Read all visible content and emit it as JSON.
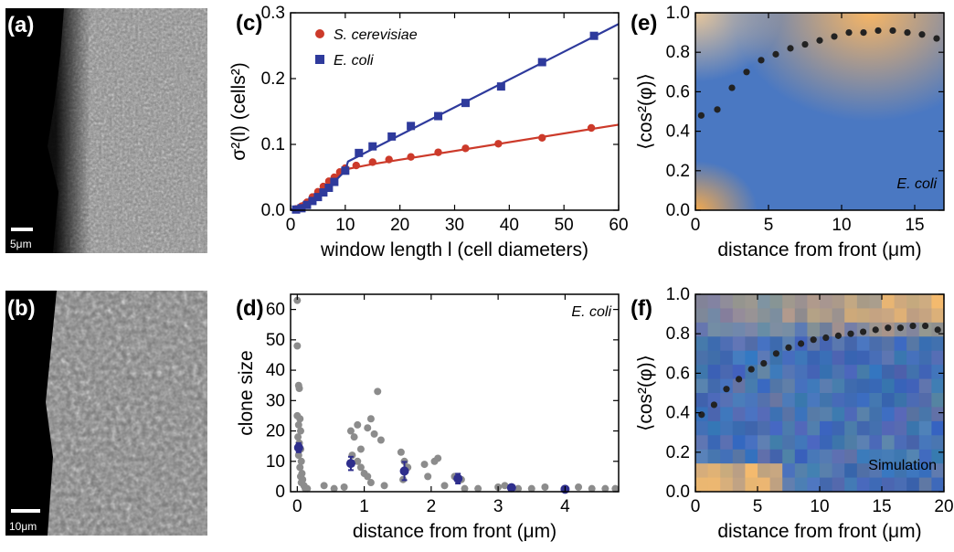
{
  "panels": {
    "a": {
      "label": "(a)",
      "scalebar": "5μm"
    },
    "b": {
      "label": "(b)",
      "scalebar": "10μm"
    },
    "c": {
      "label": "(c)"
    },
    "d": {
      "label": "(d)"
    },
    "e": {
      "label": "(e)"
    },
    "f": {
      "label": "(f)"
    }
  },
  "chart_data": [
    {
      "id": "c",
      "type": "line",
      "xlabel": "window length l (cell diameters)",
      "ylabel": "σ²(l) (cells²)",
      "xlim": [
        0,
        60
      ],
      "ylim": [
        0,
        0.3
      ],
      "xticks": [
        "0",
        "10",
        "20",
        "30",
        "40",
        "50",
        "60"
      ],
      "yticks": [
        "0.0",
        "0.1",
        "0.2",
        "0.3"
      ],
      "legend": "top-left",
      "series": [
        {
          "name": "S. cerevisiae",
          "color": "#cc3a2a",
          "marker": "circle",
          "x": [
            1,
            2,
            3,
            4,
            5,
            6,
            7,
            8,
            9,
            10,
            12,
            15,
            18,
            22,
            27,
            32,
            38,
            46,
            55
          ],
          "y": [
            0.002,
            0.006,
            0.012,
            0.02,
            0.028,
            0.036,
            0.044,
            0.05,
            0.058,
            0.064,
            0.068,
            0.073,
            0.077,
            0.081,
            0.088,
            0.094,
            0.101,
            0.11,
            0.125
          ],
          "fit": [
            [
              0,
              0
            ],
            [
              4,
              0.02
            ],
            [
              8,
              0.048
            ],
            [
              10,
              0.062
            ],
            [
              15,
              0.07
            ],
            [
              60,
              0.13
            ]
          ]
        },
        {
          "name": "E. coli",
          "color": "#2e3a9c",
          "marker": "square",
          "x": [
            1,
            2,
            3,
            4,
            5,
            6,
            7,
            8,
            10,
            12.5,
            15,
            18.5,
            22,
            27,
            32,
            38.5,
            46,
            55.5
          ],
          "y": [
            0.001,
            0.003,
            0.008,
            0.014,
            0.02,
            0.027,
            0.034,
            0.043,
            0.06,
            0.087,
            0.097,
            0.112,
            0.128,
            0.143,
            0.163,
            0.188,
            0.225,
            0.265
          ],
          "fit": [
            [
              0,
              0
            ],
            [
              5,
              0.018
            ],
            [
              10,
              0.06
            ],
            [
              10.5,
              0.074
            ],
            [
              60,
              0.283
            ]
          ]
        }
      ]
    },
    {
      "id": "d",
      "type": "scatter",
      "xlabel": "distance from front (μm)",
      "ylabel": "clone size",
      "annotation": "E. coli",
      "xlim": [
        -0.1,
        4.8
      ],
      "ylim": [
        0,
        65
      ],
      "xticks": [
        "0",
        "1",
        "2",
        "3",
        "4"
      ],
      "yticks": [
        "0",
        "10",
        "20",
        "30",
        "40",
        "50",
        "60"
      ],
      "series": [
        {
          "name": "",
          "color": "#8c8c8c",
          "points": [
            [
              0,
              63
            ],
            [
              0,
              48
            ],
            [
              0.02,
              35
            ],
            [
              0.03,
              34
            ],
            [
              0.0,
              25
            ],
            [
              0.04,
              24
            ],
            [
              0.02,
              22
            ],
            [
              0.05,
              20
            ],
            [
              0.01,
              18
            ],
            [
              0.03,
              16
            ],
            [
              0.05,
              14
            ],
            [
              0.02,
              12
            ],
            [
              0.06,
              10
            ],
            [
              0.04,
              8
            ],
            [
              0.07,
              6
            ],
            [
              0.05,
              5
            ],
            [
              0.08,
              4
            ],
            [
              0.06,
              3
            ],
            [
              0.1,
              2
            ],
            [
              0.12,
              1
            ],
            [
              0.15,
              1
            ],
            [
              0.4,
              2
            ],
            [
              0.55,
              1
            ],
            [
              0.7,
              1.5
            ],
            [
              0.8,
              20
            ],
            [
              0.85,
              18
            ],
            [
              0.9,
              22
            ],
            [
              0.95,
              14
            ],
            [
              0.82,
              12
            ],
            [
              0.9,
              10
            ],
            [
              0.95,
              8
            ],
            [
              1.0,
              6
            ],
            [
              1.05,
              21
            ],
            [
              1.1,
              24
            ],
            [
              1.15,
              19
            ],
            [
              1.2,
              33
            ],
            [
              1.25,
              17
            ],
            [
              1.05,
              5
            ],
            [
              1.1,
              3
            ],
            [
              1.3,
              2
            ],
            [
              1.55,
              13
            ],
            [
              1.6,
              10
            ],
            [
              1.65,
              8
            ],
            [
              1.58,
              4
            ],
            [
              1.9,
              9
            ],
            [
              2.05,
              10
            ],
            [
              2.1,
              11
            ],
            [
              1.95,
              5
            ],
            [
              2.2,
              2
            ],
            [
              2.35,
              5
            ],
            [
              2.45,
              4
            ],
            [
              2.5,
              1
            ],
            [
              2.7,
              1
            ],
            [
              3.0,
              1.5
            ],
            [
              3.1,
              2
            ],
            [
              3.3,
              1
            ],
            [
              3.5,
              1
            ],
            [
              3.7,
              1.5
            ],
            [
              4.0,
              1
            ],
            [
              4.2,
              1.5
            ],
            [
              4.4,
              1
            ],
            [
              4.6,
              1
            ],
            [
              4.75,
              1
            ]
          ]
        },
        {
          "name": "",
          "color": "#2e2e8c",
          "error": true,
          "points": [
            [
              0.02,
              14.5
            ],
            [
              0.8,
              9.3
            ],
            [
              1.6,
              6.8
            ],
            [
              2.4,
              4.3
            ],
            [
              3.2,
              1.3
            ],
            [
              4.0,
              0.8
            ]
          ],
          "err": [
            1.5,
            2.2,
            3.0,
            1.6,
            0.4,
            0.4
          ]
        }
      ]
    },
    {
      "id": "e",
      "type": "heatmap",
      "xlabel": "distance from front (μm)",
      "ylabel": "⟨cos²(φ)⟩",
      "annotation": "E. coli",
      "xlim": [
        0,
        17
      ],
      "ylim": [
        0,
        1
      ],
      "xticks": [
        "0",
        "5",
        "10",
        "15"
      ],
      "yticks": [
        "0.0",
        "0.2",
        "0.4",
        "0.6",
        "0.8",
        "1.0"
      ],
      "dots": {
        "color": "#222222",
        "x": [
          0.4,
          1.5,
          2.5,
          3.5,
          4.5,
          5.5,
          6.5,
          7.5,
          8.5,
          9.5,
          10.5,
          11.5,
          12.5,
          13.5,
          14.5,
          15.5,
          16.5
        ],
        "y": [
          0.48,
          0.51,
          0.62,
          0.7,
          0.76,
          0.79,
          0.82,
          0.84,
          0.86,
          0.88,
          0.9,
          0.9,
          0.91,
          0.91,
          0.9,
          0.89,
          0.87
        ]
      }
    },
    {
      "id": "f",
      "type": "heatmap",
      "xlabel": "distance from front (μm)",
      "ylabel": "⟨cos²(φ)⟩",
      "annotation": "Simulation",
      "xlim": [
        0,
        20
      ],
      "ylim": [
        0,
        1
      ],
      "xticks": [
        "0",
        "5",
        "10",
        "15",
        "20"
      ],
      "yticks": [
        "0.0",
        "0.2",
        "0.4",
        "0.6",
        "0.8",
        "1.0"
      ],
      "dots": {
        "color": "#222222",
        "x": [
          0.5,
          1.5,
          2.5,
          3.5,
          4.5,
          5.5,
          6.5,
          7.5,
          8.5,
          9.5,
          10.5,
          11.5,
          12.5,
          13.5,
          14.5,
          15.5,
          16.5,
          17.5,
          18.5,
          19.5
        ],
        "y": [
          0.39,
          0.44,
          0.52,
          0.57,
          0.62,
          0.65,
          0.7,
          0.73,
          0.75,
          0.77,
          0.78,
          0.79,
          0.8,
          0.81,
          0.82,
          0.83,
          0.83,
          0.84,
          0.84,
          0.82
        ]
      }
    }
  ],
  "colors": {
    "blue": "#3f6bb5",
    "orange": "#f1b36a",
    "gray": "#8c8c8c"
  }
}
